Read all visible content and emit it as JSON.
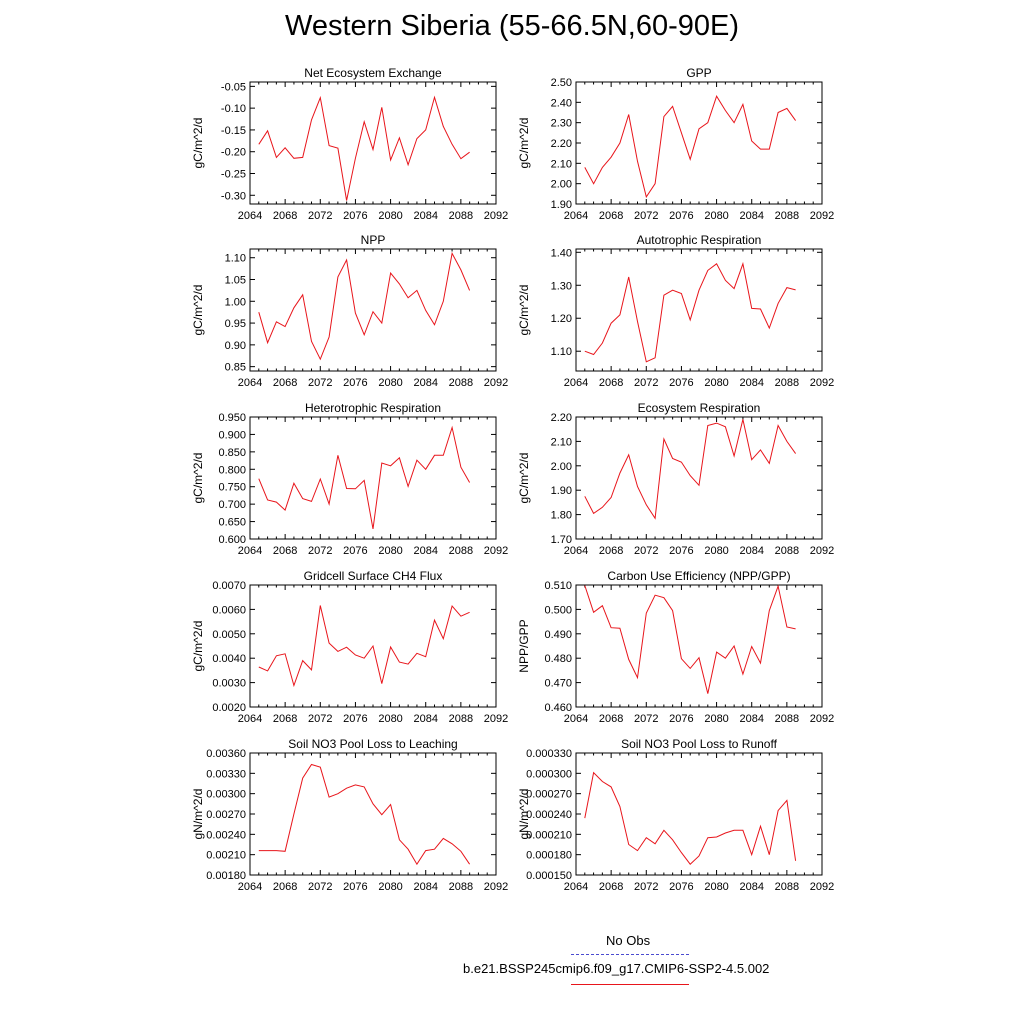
{
  "title": "Western Siberia (55-66.5N,60-90E)",
  "line_color": "#e8151b",
  "obs_color": "#4a4ad0",
  "legend": {
    "obs_label": "No Obs",
    "model_label": "b.e21.BSSP245cmip6.f09_g17.CMIP6-SSP2-4.5.002"
  },
  "chart_data": [
    {
      "type": "line",
      "title": "Net Ecosystem Exchange",
      "ylabel": "gC/m^2/d",
      "xlim": [
        2064,
        2092
      ],
      "xticks": [
        2064,
        2068,
        2072,
        2076,
        2080,
        2084,
        2088,
        2092
      ],
      "ylim": [
        -0.32,
        -0.04
      ],
      "yticks": [
        "-0.05",
        "-0.10",
        "-0.15",
        "-0.20",
        "-0.25",
        "-0.30"
      ],
      "x": [
        2065,
        2066,
        2067,
        2068,
        2069,
        2070,
        2071,
        2072,
        2073,
        2074,
        2075,
        2076,
        2077,
        2078,
        2079,
        2080,
        2081,
        2082,
        2083,
        2084,
        2085,
        2086,
        2087,
        2088,
        2089
      ],
      "values": [
        -0.183,
        -0.152,
        -0.213,
        -0.191,
        -0.215,
        -0.213,
        -0.127,
        -0.076,
        -0.186,
        -0.192,
        -0.312,
        -0.215,
        -0.131,
        -0.195,
        -0.098,
        -0.219,
        -0.168,
        -0.23,
        -0.17,
        -0.15,
        -0.075,
        -0.142,
        -0.183,
        -0.216,
        -0.201
      ]
    },
    {
      "type": "line",
      "title": "GPP",
      "ylabel": "gC/m^2/d",
      "xlim": [
        2064,
        2092
      ],
      "xticks": [
        2064,
        2068,
        2072,
        2076,
        2080,
        2084,
        2088,
        2092
      ],
      "ylim": [
        1.9,
        2.5
      ],
      "yticks": [
        "2.50",
        "2.40",
        "2.30",
        "2.20",
        "2.10",
        "2.00",
        "1.90"
      ],
      "x": [
        2065,
        2066,
        2067,
        2068,
        2069,
        2070,
        2071,
        2072,
        2073,
        2074,
        2075,
        2076,
        2077,
        2078,
        2079,
        2080,
        2081,
        2082,
        2083,
        2084,
        2085,
        2086,
        2087,
        2088,
        2089
      ],
      "values": [
        2.08,
        2.0,
        2.08,
        2.13,
        2.2,
        2.34,
        2.11,
        1.935,
        2.0,
        2.33,
        2.38,
        2.25,
        2.12,
        2.27,
        2.3,
        2.43,
        2.36,
        2.3,
        2.39,
        2.21,
        2.17,
        2.17,
        2.35,
        2.37,
        2.31
      ]
    },
    {
      "type": "line",
      "title": "NPP",
      "ylabel": "gC/m^2/d",
      "xlim": [
        2064,
        2092
      ],
      "xticks": [
        2064,
        2068,
        2072,
        2076,
        2080,
        2084,
        2088,
        2092
      ],
      "ylim": [
        0.84,
        1.12
      ],
      "yticks": [
        "1.10",
        "1.05",
        "1.00",
        "0.95",
        "0.90",
        "0.85"
      ],
      "x": [
        2065,
        2066,
        2067,
        2068,
        2069,
        2070,
        2071,
        2072,
        2073,
        2074,
        2075,
        2076,
        2077,
        2078,
        2079,
        2080,
        2081,
        2082,
        2083,
        2084,
        2085,
        2086,
        2087,
        2088,
        2089
      ],
      "values": [
        0.975,
        0.905,
        0.953,
        0.942,
        0.985,
        1.015,
        0.908,
        0.867,
        0.918,
        1.056,
        1.095,
        0.973,
        0.923,
        0.976,
        0.95,
        1.065,
        1.04,
        1.008,
        1.025,
        0.979,
        0.946,
        1.0,
        1.11,
        1.072,
        1.025
      ]
    },
    {
      "type": "line",
      "title": "Autotrophic Respiration",
      "ylabel": "gC/m^2/d",
      "xlim": [
        2064,
        2092
      ],
      "xticks": [
        2064,
        2068,
        2072,
        2076,
        2080,
        2084,
        2088,
        2092
      ],
      "ylim": [
        1.04,
        1.41
      ],
      "yticks": [
        "1.40",
        "1.30",
        "1.20",
        "1.10"
      ],
      "x": [
        2065,
        2066,
        2067,
        2068,
        2069,
        2070,
        2071,
        2072,
        2073,
        2074,
        2075,
        2076,
        2077,
        2078,
        2079,
        2080,
        2081,
        2082,
        2083,
        2084,
        2085,
        2086,
        2087,
        2088,
        2089
      ],
      "values": [
        1.1,
        1.09,
        1.125,
        1.185,
        1.21,
        1.325,
        1.19,
        1.068,
        1.08,
        1.27,
        1.285,
        1.275,
        1.195,
        1.285,
        1.345,
        1.365,
        1.315,
        1.29,
        1.365,
        1.23,
        1.228,
        1.17,
        1.245,
        1.293,
        1.286
      ]
    },
    {
      "type": "line",
      "title": "Heterotrophic Respiration",
      "ylabel": "gC/m^2/d",
      "xlim": [
        2064,
        2092
      ],
      "xticks": [
        2064,
        2068,
        2072,
        2076,
        2080,
        2084,
        2088,
        2092
      ],
      "ylim": [
        0.6,
        0.95
      ],
      "yticks": [
        "0.950",
        "0.900",
        "0.850",
        "0.800",
        "0.750",
        "0.700",
        "0.650",
        "0.600"
      ],
      "x": [
        2065,
        2066,
        2067,
        2068,
        2069,
        2070,
        2071,
        2072,
        2073,
        2074,
        2075,
        2076,
        2077,
        2078,
        2079,
        2080,
        2081,
        2082,
        2083,
        2084,
        2085,
        2086,
        2087,
        2088,
        2089
      ],
      "values": [
        0.773,
        0.712,
        0.706,
        0.683,
        0.76,
        0.716,
        0.708,
        0.772,
        0.7,
        0.84,
        0.745,
        0.744,
        0.768,
        0.629,
        0.818,
        0.81,
        0.833,
        0.751,
        0.826,
        0.8,
        0.84,
        0.84,
        0.92,
        0.806,
        0.762
      ]
    },
    {
      "type": "line",
      "title": "Ecosystem Respiration",
      "ylabel": "gC/m^2/d",
      "xlim": [
        2064,
        2092
      ],
      "xticks": [
        2064,
        2068,
        2072,
        2076,
        2080,
        2084,
        2088,
        2092
      ],
      "ylim": [
        1.7,
        2.2
      ],
      "yticks": [
        "2.20",
        "2.10",
        "2.00",
        "1.90",
        "1.80",
        "1.70"
      ],
      "x": [
        2065,
        2066,
        2067,
        2068,
        2069,
        2070,
        2071,
        2072,
        2073,
        2074,
        2075,
        2076,
        2077,
        2078,
        2079,
        2080,
        2081,
        2082,
        2083,
        2084,
        2085,
        2086,
        2087,
        2088,
        2089
      ],
      "values": [
        1.875,
        1.805,
        1.83,
        1.87,
        1.97,
        2.045,
        1.915,
        1.84,
        1.785,
        2.11,
        2.03,
        2.015,
        1.96,
        1.92,
        2.165,
        2.175,
        2.16,
        2.04,
        2.19,
        2.025,
        2.065,
        2.01,
        2.165,
        2.1,
        2.05
      ]
    },
    {
      "type": "line",
      "title": "Gridcell Surface CH4 Flux",
      "ylabel": "gC/m^2/d",
      "xlim": [
        2064,
        2092
      ],
      "xticks": [
        2064,
        2068,
        2072,
        2076,
        2080,
        2084,
        2088,
        2092
      ],
      "ylim": [
        0.002,
        0.007
      ],
      "yticks": [
        "0.0070",
        "0.0060",
        "0.0050",
        "0.0040",
        "0.0030",
        "0.0020"
      ],
      "x": [
        2065,
        2066,
        2067,
        2068,
        2069,
        2070,
        2071,
        2072,
        2073,
        2074,
        2075,
        2076,
        2077,
        2078,
        2079,
        2080,
        2081,
        2082,
        2083,
        2084,
        2085,
        2086,
        2087,
        2088,
        2089
      ],
      "values": [
        0.00364,
        0.00348,
        0.0041,
        0.00418,
        0.00288,
        0.0039,
        0.00352,
        0.00616,
        0.00462,
        0.00428,
        0.00445,
        0.00413,
        0.004,
        0.0045,
        0.00296,
        0.00446,
        0.00384,
        0.00376,
        0.0042,
        0.00406,
        0.00556,
        0.0048,
        0.00614,
        0.00572,
        0.00588
      ]
    },
    {
      "type": "line",
      "title": "Carbon Use Efficiency (NPP/GPP)",
      "ylabel": "NPP/GPP",
      "xlim": [
        2064,
        2092
      ],
      "xticks": [
        2064,
        2068,
        2072,
        2076,
        2080,
        2084,
        2088,
        2092
      ],
      "ylim": [
        0.46,
        0.51
      ],
      "yticks": [
        "0.510",
        "0.500",
        "0.490",
        "0.480",
        "0.470",
        "0.460"
      ],
      "x": [
        2065,
        2066,
        2067,
        2068,
        2069,
        2070,
        2071,
        2072,
        2073,
        2074,
        2075,
        2076,
        2077,
        2078,
        2079,
        2080,
        2081,
        2082,
        2083,
        2084,
        2085,
        2086,
        2087,
        2088,
        2089
      ],
      "values": [
        0.5098,
        0.4988,
        0.5015,
        0.4925,
        0.4923,
        0.4795,
        0.472,
        0.4985,
        0.5058,
        0.5048,
        0.4995,
        0.4798,
        0.4758,
        0.4802,
        0.4655,
        0.4825,
        0.48,
        0.485,
        0.4735,
        0.4848,
        0.478,
        0.4995,
        0.5095,
        0.4928,
        0.492
      ]
    },
    {
      "type": "line",
      "title": "Soil NO3 Pool Loss to Leaching",
      "ylabel": "gN/m^2/d",
      "xlim": [
        2064,
        2092
      ],
      "xticks": [
        2064,
        2068,
        2072,
        2076,
        2080,
        2084,
        2088,
        2092
      ],
      "ylim": [
        0.0018,
        0.0036
      ],
      "yticks": [
        "0.00360",
        "0.00330",
        "0.00300",
        "0.00270",
        "0.00240",
        "0.00210",
        "0.00180"
      ],
      "x": [
        2065,
        2066,
        2067,
        2068,
        2069,
        2070,
        2071,
        2072,
        2073,
        2074,
        2075,
        2076,
        2077,
        2078,
        2079,
        2080,
        2081,
        2082,
        2083,
        2084,
        2085,
        2086,
        2087,
        2088,
        2089
      ],
      "values": [
        0.00216,
        0.00216,
        0.00216,
        0.00215,
        0.0027,
        0.00323,
        0.00343,
        0.00339,
        0.00295,
        0.003,
        0.00308,
        0.00313,
        0.0031,
        0.00285,
        0.00269,
        0.00284,
        0.00232,
        0.00218,
        0.00196,
        0.00216,
        0.00218,
        0.00234,
        0.00226,
        0.00215,
        0.00196
      ]
    },
    {
      "type": "line",
      "title": "Soil NO3 Pool Loss to Runoff",
      "ylabel": "gN/m^2/d",
      "xlim": [
        2064,
        2092
      ],
      "xticks": [
        2064,
        2068,
        2072,
        2076,
        2080,
        2084,
        2088,
        2092
      ],
      "ylim": [
        0.00015,
        0.00033
      ],
      "yticks": [
        "0.000330",
        "0.000300",
        "0.000270",
        "0.000240",
        "0.000210",
        "0.000180",
        "0.000150"
      ],
      "x": [
        2065,
        2066,
        2067,
        2068,
        2069,
        2070,
        2071,
        2072,
        2073,
        2074,
        2075,
        2076,
        2077,
        2078,
        2079,
        2080,
        2081,
        2082,
        2083,
        2084,
        2085,
        2086,
        2087,
        2088,
        2089
      ],
      "values": [
        0.000234,
        0.000301,
        0.000288,
        0.00028,
        0.000251,
        0.000195,
        0.000186,
        0.000205,
        0.000196,
        0.000216,
        0.000202,
        0.000183,
        0.000166,
        0.000178,
        0.000205,
        0.000206,
        0.000212,
        0.000216,
        0.000216,
        0.00018,
        0.000222,
        0.00018,
        0.000245,
        0.00026,
        0.000171
      ]
    }
  ]
}
